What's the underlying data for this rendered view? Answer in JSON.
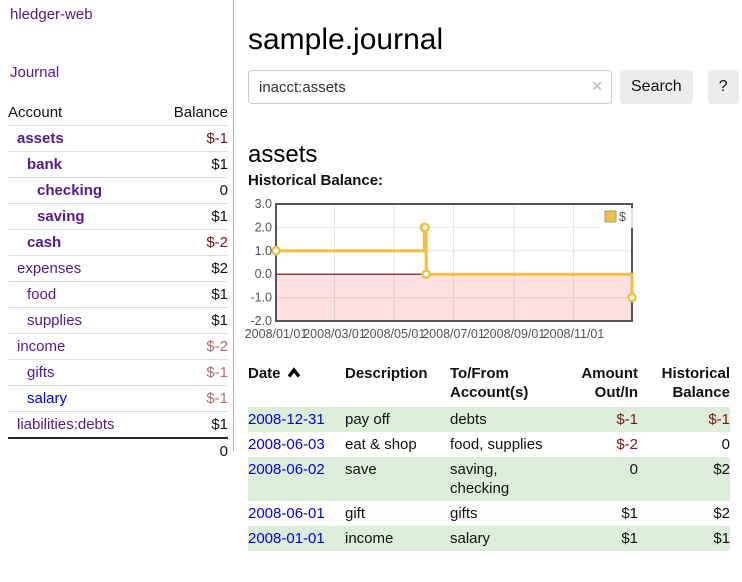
{
  "colors": {
    "visited_link": "#551a8b",
    "unvisited_link": "#0000e8",
    "negative_strong": "#801515",
    "negative_dim": "#b36b6b",
    "row_highlight": "#dcedda",
    "series": "#edc240",
    "series_edge": "#b08c1e",
    "zero_line": "#800000",
    "negative_region": "rgba(255,0,0,0.12)",
    "chart_border": "#555555",
    "grid_line": "#e6e6e6",
    "axis_text": "#545454"
  },
  "sidebar": {
    "brand": "hledger-web",
    "nav_journal": "Journal",
    "columns": {
      "account": "Account",
      "balance": "Balance"
    },
    "accounts": [
      {
        "name": "assets",
        "depth": 1,
        "bold": true,
        "balance": "$-1",
        "neg": "strong"
      },
      {
        "name": "bank",
        "depth": 2,
        "bold": true,
        "balance": "$1"
      },
      {
        "name": "checking",
        "depth": 3,
        "bold": true,
        "balance": "0"
      },
      {
        "name": "saving",
        "depth": 3,
        "bold": true,
        "balance": "$1"
      },
      {
        "name": "cash",
        "depth": 2,
        "bold": true,
        "balance": "$-2",
        "neg": "strong"
      },
      {
        "name": "expenses",
        "depth": 1,
        "balance": "$2"
      },
      {
        "name": "food",
        "depth": 2,
        "balance": "$1"
      },
      {
        "name": "supplies",
        "depth": 2,
        "balance": "$1"
      },
      {
        "name": "income",
        "depth": 1,
        "balance": "$-2",
        "neg": "dim"
      },
      {
        "name": "gifts",
        "depth": 2,
        "balance": "$-1",
        "neg": "dim"
      },
      {
        "name": "salary",
        "depth": 2,
        "balance": "$-1",
        "neg": "dim",
        "unvisited": true
      },
      {
        "name": "liabilities:debts",
        "depth": 1,
        "balance": "$1"
      }
    ],
    "total": "0"
  },
  "main": {
    "title": "sample.journal",
    "search": {
      "value": "inacct:assets",
      "clear_icon": "✕",
      "button_label": "Search",
      "help_label": "?"
    },
    "account_heading": "assets",
    "chart_heading": "Historical Balance:"
  },
  "chart_data": {
    "type": "line",
    "step": true,
    "title": "Historical Balance",
    "series": [
      {
        "name": "$",
        "points": [
          [
            "2008-01-01",
            1
          ],
          [
            "2008-06-01",
            2
          ],
          [
            "2008-06-02",
            2
          ],
          [
            "2008-06-03",
            0
          ],
          [
            "2008-12-31",
            -1
          ]
        ]
      }
    ],
    "xlim": [
      "2008-01-01",
      "2008-12-31"
    ],
    "ylim": [
      -2,
      3
    ],
    "x_ticks": [
      [
        "2008-01-01",
        "2008/01/01"
      ],
      [
        "2008-03-01",
        "2008/03/01"
      ],
      [
        "2008-05-01",
        "2008/05/01"
      ],
      [
        "2008-07-01",
        "2008/07/01"
      ],
      [
        "2008-09-01",
        "2008/09/01"
      ],
      [
        "2008-11-01",
        "2008/11/01"
      ]
    ],
    "y_ticks": [
      "3.0",
      "2.0",
      "1.0",
      "0.0",
      "-1.0",
      "-2.0"
    ],
    "legend": {
      "label": "$",
      "position": "top-right"
    },
    "grid": true
  },
  "register": {
    "headers": {
      "date": "Date",
      "description": "Description",
      "accounts": "To/From Account(s)",
      "amount": "Amount Out/In",
      "balance": "Historical Balance"
    },
    "rows": [
      {
        "date": "2008-12-31",
        "description": "pay off",
        "accounts": "debts",
        "amount": "$-1",
        "balance": "$-1",
        "highlight": true
      },
      {
        "date": "2008-06-03",
        "description": "eat & shop",
        "accounts": "food, supplies",
        "amount": "$-2",
        "balance": "0"
      },
      {
        "date": "2008-06-02",
        "description": "save",
        "accounts": "saving, checking",
        "wrap": true,
        "amount": "0",
        "balance": "$2",
        "highlight": true
      },
      {
        "date": "2008-06-01",
        "description": "gift",
        "accounts": "gifts",
        "amount": "$1",
        "balance": "$2"
      },
      {
        "date": "2008-01-01",
        "description": "income",
        "accounts": "salary",
        "amount": "$1",
        "balance": "$1",
        "highlight": true
      }
    ]
  }
}
